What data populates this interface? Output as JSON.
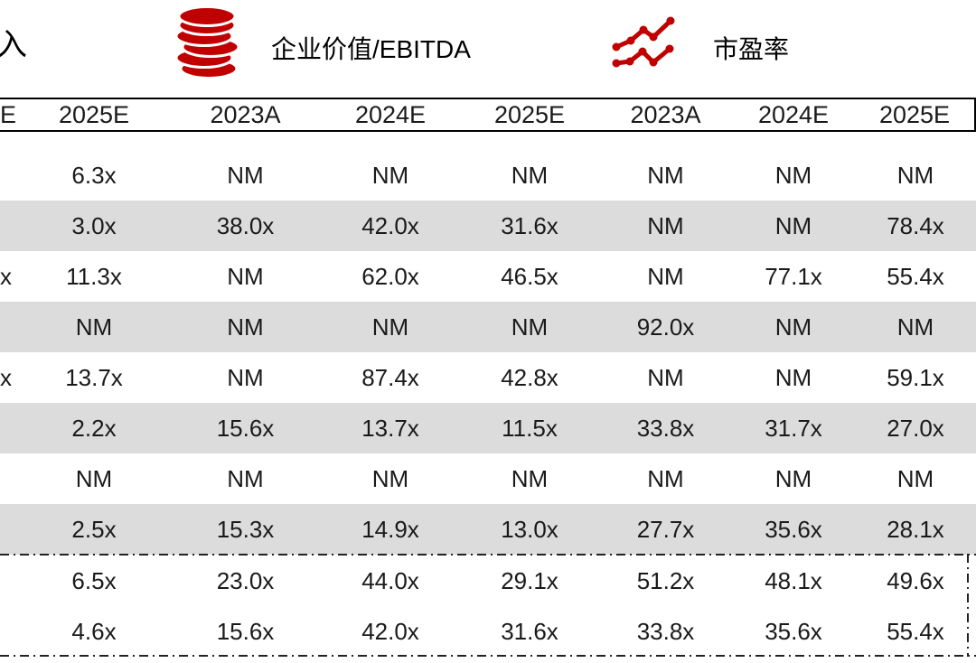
{
  "colors": {
    "accent_red": "#C00000",
    "stripe_gray": "#DCDCDC",
    "text": "#1A1A1A"
  },
  "legend": {
    "revenue_partial_label": "入",
    "ev_ebitda_label": "企业价值/EBITDA",
    "pe_label": "市盈率",
    "ev_icon": "coins-icon",
    "pe_icon": "line-chart-icon"
  },
  "table": {
    "headers": [
      "E",
      "2025E",
      "2023A",
      "2024E",
      "2025E",
      "2023A",
      "2024E",
      "2025E"
    ],
    "rows": [
      {
        "stripe": false,
        "cells": [
          "",
          "6.3x",
          "NM",
          "NM",
          "NM",
          "NM",
          "NM",
          "NM"
        ]
      },
      {
        "stripe": true,
        "cells": [
          "",
          "3.0x",
          "38.0x",
          "42.0x",
          "31.6x",
          "NM",
          "NM",
          "78.4x"
        ]
      },
      {
        "stripe": false,
        "cells": [
          "x",
          "11.3x",
          "NM",
          "62.0x",
          "46.5x",
          "NM",
          "77.1x",
          "55.4x"
        ]
      },
      {
        "stripe": true,
        "cells": [
          "",
          "NM",
          "NM",
          "NM",
          "NM",
          "92.0x",
          "NM",
          "NM"
        ]
      },
      {
        "stripe": false,
        "cells": [
          "x",
          "13.7x",
          "NM",
          "87.4x",
          "42.8x",
          "NM",
          "NM",
          "59.1x"
        ]
      },
      {
        "stripe": true,
        "cells": [
          "",
          "2.2x",
          "15.6x",
          "13.7x",
          "11.5x",
          "33.8x",
          "31.7x",
          "27.0x"
        ]
      },
      {
        "stripe": false,
        "cells": [
          "",
          "NM",
          "NM",
          "NM",
          "NM",
          "NM",
          "NM",
          "NM"
        ]
      },
      {
        "stripe": true,
        "cells": [
          "",
          "2.5x",
          "15.3x",
          "14.9x",
          "13.0x",
          "27.7x",
          "35.6x",
          "28.1x"
        ]
      }
    ],
    "summary_rows": [
      {
        "cells": [
          "",
          "6.5x",
          "23.0x",
          "44.0x",
          "29.1x",
          "51.2x",
          "48.1x",
          "49.6x"
        ]
      },
      {
        "cells": [
          "",
          "4.6x",
          "15.6x",
          "42.0x",
          "31.6x",
          "33.8x",
          "35.6x",
          "55.4x"
        ]
      }
    ]
  }
}
